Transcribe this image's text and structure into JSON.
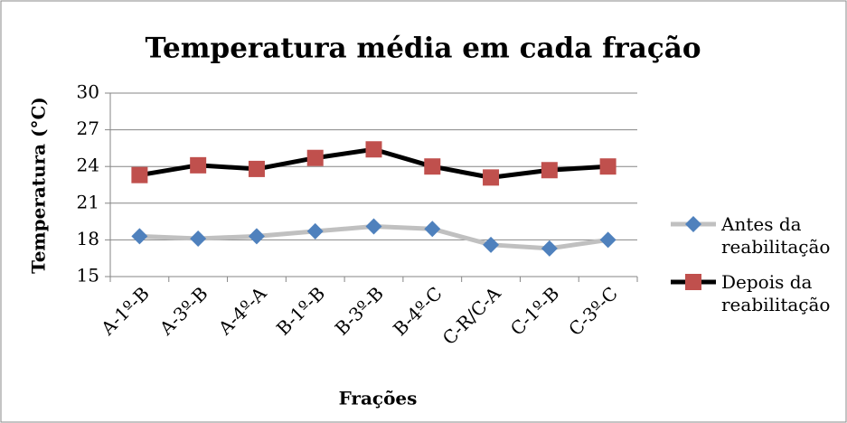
{
  "chart_data": {
    "type": "line",
    "title": "Temperatura média em cada fração",
    "xlabel": "Frações",
    "ylabel": "Temperatura (°C)",
    "categories": [
      "A-1º-B",
      "A-3º-B",
      "A-4º-A",
      "B-1º-B",
      "B-3º-B",
      "B-4º-C",
      "C-R/C-A",
      "C-1º-B",
      "C-3º-C"
    ],
    "series": [
      {
        "name": "Antes da reabilitação",
        "color": "#c0c0c0",
        "marker_color": "#4f81bd",
        "marker": "diamond",
        "values": [
          18.3,
          18.1,
          18.3,
          18.7,
          19.1,
          18.9,
          17.6,
          17.3,
          18.0
        ]
      },
      {
        "name": "Depois da reabilitação",
        "color": "#000000",
        "marker_color": "#c0504d",
        "marker": "square",
        "values": [
          23.3,
          24.1,
          23.8,
          24.7,
          25.4,
          24.0,
          23.1,
          23.7,
          24.0
        ]
      }
    ],
    "ylim": [
      15,
      30
    ],
    "yticks": [
      15,
      18,
      21,
      24,
      27,
      30
    ],
    "grid": true,
    "legend": "right"
  }
}
